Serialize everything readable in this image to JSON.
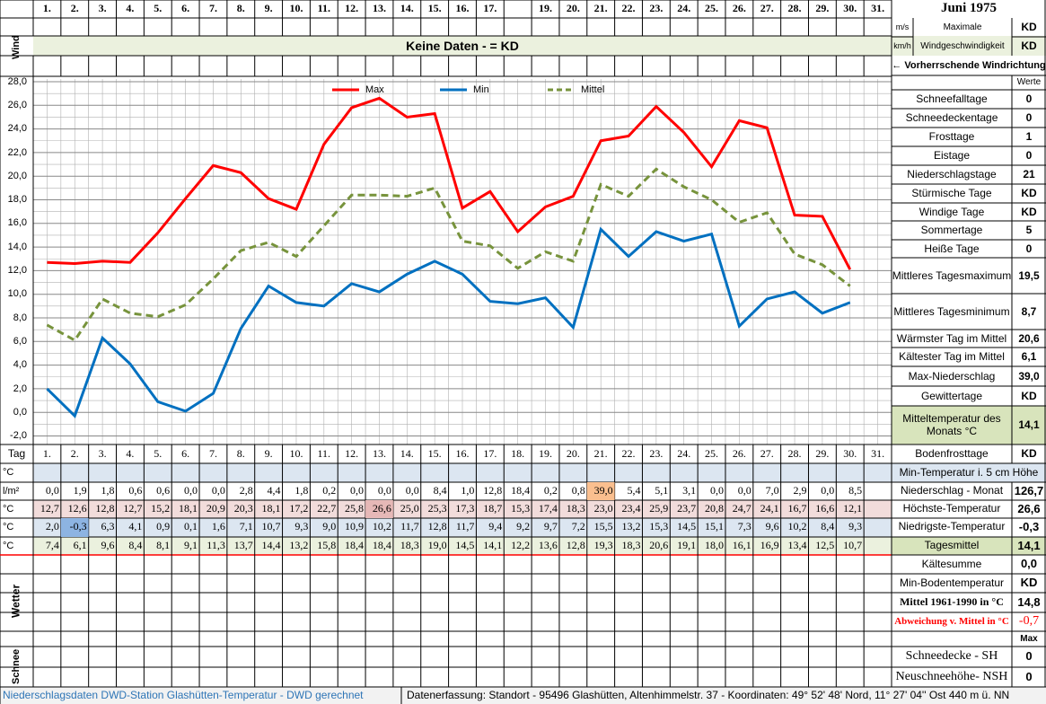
{
  "header": {
    "days": [
      "1.",
      "2.",
      "3.",
      "4.",
      "5.",
      "6.",
      "7.",
      "8.",
      "9.",
      "10.",
      "11.",
      "12.",
      "13.",
      "14.",
      "15.",
      "16.",
      "17.",
      null,
      "19.",
      "20.",
      "21.",
      "22.",
      "23.",
      "24.",
      "25.",
      "26.",
      "27.",
      "28.",
      "29.",
      "30.",
      "31."
    ],
    "title": "Juni 1975",
    "wind_label": "Wind",
    "no_data": "Keine Daten -  = KD",
    "wind_rows": [
      {
        "unit": "m/s",
        "label": "Maximale",
        "value": "KD"
      },
      {
        "unit": "km/h",
        "label": "Windgeschwindigkeit",
        "value": "KD"
      }
    ],
    "wind_direction": "← Vorherrschende Windrichtung",
    "values_header": "Werte"
  },
  "summary": [
    {
      "label": "Schneefalltage",
      "value": "0"
    },
    {
      "label": "Schneedeckentage",
      "value": "0"
    },
    {
      "label": "Frosttage",
      "value": "1"
    },
    {
      "label": "Eistage",
      "value": "0"
    },
    {
      "label": "Niederschlagstage",
      "value": "21"
    },
    {
      "label": "Stürmische Tage",
      "value": "KD"
    },
    {
      "label": "Windige Tage",
      "value": "KD"
    },
    {
      "label": "Sommertage",
      "value": "5"
    },
    {
      "label": "Heiße Tage",
      "value": "0"
    },
    {
      "label": "Mittleres Tagesmaximum",
      "value": "19,5"
    },
    {
      "label": "Mittleres Tagesminimum",
      "value": "8,7"
    },
    {
      "label": "Wärmster Tag im Mittel",
      "value": "20,6"
    },
    {
      "label": "Kältester Tag im Mittel",
      "value": "6,1"
    },
    {
      "label": "Max-Niederschlag",
      "value": "39,0"
    },
    {
      "label": "Gewittertage",
      "value": "KD"
    },
    {
      "label": "Mitteltemperatur des Monats °C",
      "value": "14,1"
    },
    {
      "label": "Bodenfrosttage",
      "value": "KD"
    }
  ],
  "chart_data": {
    "type": "line",
    "ylim": [
      -2,
      28
    ],
    "grid": true,
    "yticks": [
      {
        "value": 28,
        "label": "28,0"
      },
      {
        "value": 26,
        "label": "26,0"
      },
      {
        "value": 24,
        "label": "24,0"
      },
      {
        "value": 22,
        "label": "22,0"
      },
      {
        "value": 20,
        "label": "20,0"
      },
      {
        "value": 18,
        "label": "18,0"
      },
      {
        "value": 16,
        "label": "16,0"
      },
      {
        "value": 14,
        "label": "14,0"
      },
      {
        "value": 12,
        "label": "12,0"
      },
      {
        "value": 10,
        "label": "10,0"
      },
      {
        "value": 8,
        "label": "8,0"
      },
      {
        "value": 6,
        "label": "6,0"
      },
      {
        "value": 4,
        "label": "4,0"
      },
      {
        "value": 2,
        "label": "2,0"
      },
      {
        "value": 0,
        "label": "0,0"
      },
      {
        "value": -2,
        "label": "-2,0"
      }
    ],
    "series": [
      {
        "name": "Max",
        "color": "#ff0000",
        "values": [
          12.7,
          12.6,
          12.8,
          12.7,
          15.2,
          18.1,
          20.9,
          20.3,
          18.1,
          17.2,
          22.7,
          25.8,
          26.6,
          25.0,
          25.3,
          17.3,
          18.7,
          15.3,
          17.4,
          18.3,
          23.0,
          23.4,
          25.9,
          23.7,
          20.8,
          24.7,
          24.1,
          16.7,
          16.6,
          12.1
        ],
        "value_labels": [
          "12,7",
          "12,6",
          "12,8",
          "12,7",
          "15,2",
          "18,1",
          "20,9",
          "20,3",
          "18,1",
          "17,2",
          "22,7",
          "25,8",
          "26,6",
          "25,0",
          "25,3",
          "17,3",
          "18,7",
          "15,3",
          "17,4",
          "18,3",
          "23,0",
          "23,4",
          "25,9",
          "23,7",
          "20,8",
          "24,7",
          "24,1",
          "16,7",
          "16,6",
          "12,1"
        ]
      },
      {
        "name": "Min",
        "color": "#0070c0",
        "values": [
          2.0,
          -0.3,
          6.3,
          4.1,
          0.9,
          0.1,
          1.6,
          7.1,
          10.7,
          9.3,
          9.0,
          10.9,
          10.2,
          11.7,
          12.8,
          11.7,
          9.4,
          9.2,
          9.7,
          7.2,
          15.5,
          13.2,
          15.3,
          14.5,
          15.1,
          7.3,
          9.6,
          10.2,
          8.4,
          9.3
        ],
        "value_labels": [
          "2,0",
          "-0,3",
          "6,3",
          "4,1",
          "0,9",
          "0,1",
          "1,6",
          "7,1",
          "10,7",
          "9,3",
          "9,0",
          "10,9",
          "10,2",
          "11,7",
          "12,8",
          "11,7",
          "9,4",
          "9,2",
          "9,7",
          "7,2",
          "15,5",
          "13,2",
          "15,3",
          "14,5",
          "15,1",
          "7,3",
          "9,6",
          "10,2",
          "8,4",
          "9,3"
        ]
      },
      {
        "name": "Mittel",
        "color": "#77933c",
        "dashed": true,
        "values": [
          7.4,
          6.1,
          9.6,
          8.4,
          8.1,
          9.1,
          11.3,
          13.7,
          14.4,
          13.2,
          15.8,
          18.4,
          18.4,
          18.3,
          19.0,
          14.5,
          14.1,
          12.2,
          13.6,
          12.8,
          19.3,
          18.3,
          20.6,
          19.1,
          18.0,
          16.1,
          16.9,
          13.4,
          12.5,
          10.7
        ],
        "value_labels": [
          "7,4",
          "6,1",
          "9,6",
          "8,4",
          "8,1",
          "9,1",
          "11,3",
          "13,7",
          "14,4",
          "13,2",
          "15,8",
          "18,4",
          "18,4",
          "18,3",
          "19,0",
          "14,5",
          "14,1",
          "12,2",
          "13,6",
          "12,8",
          "19,3",
          "18,3",
          "20,6",
          "19,1",
          "18,0",
          "16,1",
          "16,9",
          "13,4",
          "12,5",
          "10,7"
        ]
      }
    ]
  },
  "table": {
    "day_label": "Tag",
    "days": [
      "1.",
      "2.",
      "3.",
      "4.",
      "5.",
      "6.",
      "7.",
      "8.",
      "9.",
      "10.",
      "11.",
      "12.",
      "13.",
      "14.",
      "15.",
      "16.",
      "17.",
      "18.",
      "19.",
      "20.",
      "21.",
      "22.",
      "23.",
      "24.",
      "25.",
      "26.",
      "27.",
      "28.",
      "29.",
      "30.",
      "31."
    ],
    "unit_labels": [
      "°C",
      "l/m²",
      "°C",
      "°C",
      "°C"
    ],
    "precipitation": [
      "0,0",
      "1,9",
      "1,8",
      "0,6",
      "0,6",
      "0,0",
      "0,0",
      "2,8",
      "4,4",
      "1,8",
      "0,2",
      "0,0",
      "0,0",
      "0,0",
      "8,4",
      "1,0",
      "12,8",
      "18,4",
      "0,2",
      "0,8",
      "39,0",
      "5,4",
      "5,1",
      "3,1",
      "0,0",
      "0,0",
      "7,0",
      "2,9",
      "0,0",
      "8,5"
    ],
    "row_summaries": [
      {
        "label": "Min-Temperatur i. 5 cm Höhe"
      },
      {
        "label": "Niederschlag - Monat",
        "value": "126,7"
      },
      {
        "label": "Höchste-Temperatur",
        "value": "26,6"
      },
      {
        "label": "Niedrigste-Temperatur",
        "value": "-0,3"
      },
      {
        "label": "Tagesmittel",
        "value": "14,1"
      }
    ],
    "weather_label": "Wetter",
    "snow_label": "Schnee",
    "lower_summary": [
      {
        "label": "Kältesumme",
        "value": "0,0"
      },
      {
        "label": "Min-Bodentemperatur",
        "value": "KD"
      },
      {
        "label": "Mittel 1961-1990 in °C",
        "value": "14,8"
      },
      {
        "label": "Abweichung v. Mittel in °C",
        "value": "-0,7"
      },
      {
        "value": "Max"
      },
      {
        "label": "Schneedecke -  SH",
        "value": "0"
      },
      {
        "label": "Neuschneehöhe- NSH",
        "value": "0"
      }
    ]
  },
  "footer": {
    "left": "Niederschlagsdaten DWD-Station Glashütten-Temperatur -  DWD gerechnet",
    "right": "Datenerfassung: Standort - 95496 Glashütten, Altenhimmelstr. 37 - Koordinaten: 49° 52' 48' Nord,  11° 27' 04'' Ost  440 m ü. NN"
  }
}
